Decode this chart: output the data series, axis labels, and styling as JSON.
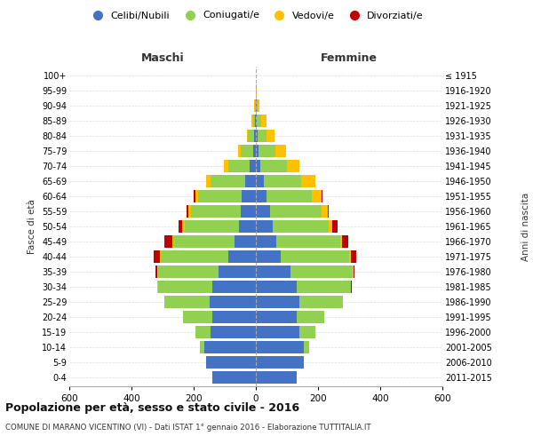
{
  "age_groups": [
    "0-4",
    "5-9",
    "10-14",
    "15-19",
    "20-24",
    "25-29",
    "30-34",
    "35-39",
    "40-44",
    "45-49",
    "50-54",
    "55-59",
    "60-64",
    "65-69",
    "70-74",
    "75-79",
    "80-84",
    "85-89",
    "90-94",
    "95-99",
    "100+"
  ],
  "birth_years": [
    "2011-2015",
    "2006-2010",
    "2001-2005",
    "1996-2000",
    "1991-1995",
    "1986-1990",
    "1981-1985",
    "1976-1980",
    "1971-1975",
    "1966-1970",
    "1961-1965",
    "1956-1960",
    "1951-1955",
    "1946-1950",
    "1941-1945",
    "1936-1940",
    "1931-1935",
    "1926-1930",
    "1921-1925",
    "1916-1920",
    "≤ 1915"
  ],
  "males": {
    "celibi": [
      140,
      160,
      165,
      145,
      140,
      150,
      140,
      120,
      90,
      70,
      55,
      50,
      45,
      35,
      20,
      8,
      5,
      2,
      1,
      0,
      0
    ],
    "coniugati": [
      0,
      0,
      15,
      50,
      95,
      145,
      175,
      195,
      215,
      195,
      175,
      160,
      140,
      110,
      70,
      40,
      20,
      8,
      3,
      0,
      0
    ],
    "vedovi": [
      0,
      0,
      0,
      0,
      0,
      0,
      1,
      2,
      3,
      5,
      6,
      8,
      10,
      15,
      12,
      10,
      5,
      3,
      1,
      0,
      0
    ],
    "divorziati": [
      0,
      0,
      0,
      0,
      0,
      0,
      2,
      5,
      20,
      25,
      12,
      5,
      5,
      0,
      0,
      0,
      0,
      0,
      0,
      0,
      0
    ]
  },
  "females": {
    "nubili": [
      130,
      155,
      155,
      140,
      130,
      140,
      130,
      110,
      80,
      65,
      55,
      45,
      35,
      25,
      15,
      8,
      5,
      3,
      2,
      0,
      0
    ],
    "coniugate": [
      0,
      0,
      15,
      50,
      90,
      140,
      175,
      200,
      220,
      205,
      180,
      165,
      145,
      120,
      85,
      55,
      30,
      15,
      5,
      1,
      0
    ],
    "vedove": [
      0,
      0,
      0,
      0,
      0,
      0,
      1,
      3,
      5,
      8,
      10,
      20,
      30,
      45,
      40,
      35,
      25,
      15,
      5,
      1,
      0
    ],
    "divorziate": [
      0,
      0,
      0,
      0,
      0,
      0,
      2,
      5,
      18,
      20,
      18,
      5,
      5,
      0,
      0,
      0,
      0,
      0,
      0,
      0,
      0
    ]
  },
  "color_celibi": "#4472c4",
  "color_coniugati": "#92d050",
  "color_vedovi": "#ffc000",
  "color_divorziati": "#c00000",
  "xlim": 600,
  "title": "Popolazione per età, sesso e stato civile - 2016",
  "subtitle": "COMUNE DI MARANO VICENTINO (VI) - Dati ISTAT 1° gennaio 2016 - Elaborazione TUTTITALIA.IT",
  "ylabel": "Fasce di età",
  "ylabel_right": "Anni di nascita",
  "label_maschi": "Maschi",
  "label_femmine": "Femmine",
  "legend_celibi": "Celibi/Nubili",
  "legend_coniugati": "Coniugati/e",
  "legend_vedovi": "Vedovi/e",
  "legend_divorziati": "Divorziati/e"
}
